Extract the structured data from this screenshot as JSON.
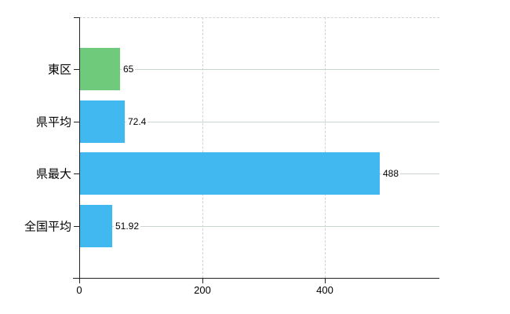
{
  "page": {
    "background": "#ffffff"
  },
  "chart_data": {
    "type": "bar",
    "orientation": "horizontal",
    "title": "",
    "xlabel": "",
    "ylabel": "",
    "categories": [
      "東区",
      "県平均",
      "県最大",
      "全国平均"
    ],
    "values": [
      65,
      72.4,
      488,
      51.92
    ],
    "value_labels": [
      "65",
      "72.4",
      "488",
      "51.92"
    ],
    "bar_colors": [
      "#6fcb7b",
      "#41b8ef",
      "#41b8ef",
      "#41b8ef"
    ],
    "x_ticks": [
      0,
      200,
      400
    ],
    "x_tick_labels": [
      "0",
      "200",
      "400"
    ],
    "xlim": [
      0,
      586
    ],
    "grid": true,
    "legend": false,
    "legend_position": "none"
  },
  "colors": {
    "axis": "#222222",
    "row_grid": "#ccd5cc",
    "dashed_grid": "#d2d2d2",
    "text": "#000000",
    "value_label_bg": "#ffffff"
  }
}
